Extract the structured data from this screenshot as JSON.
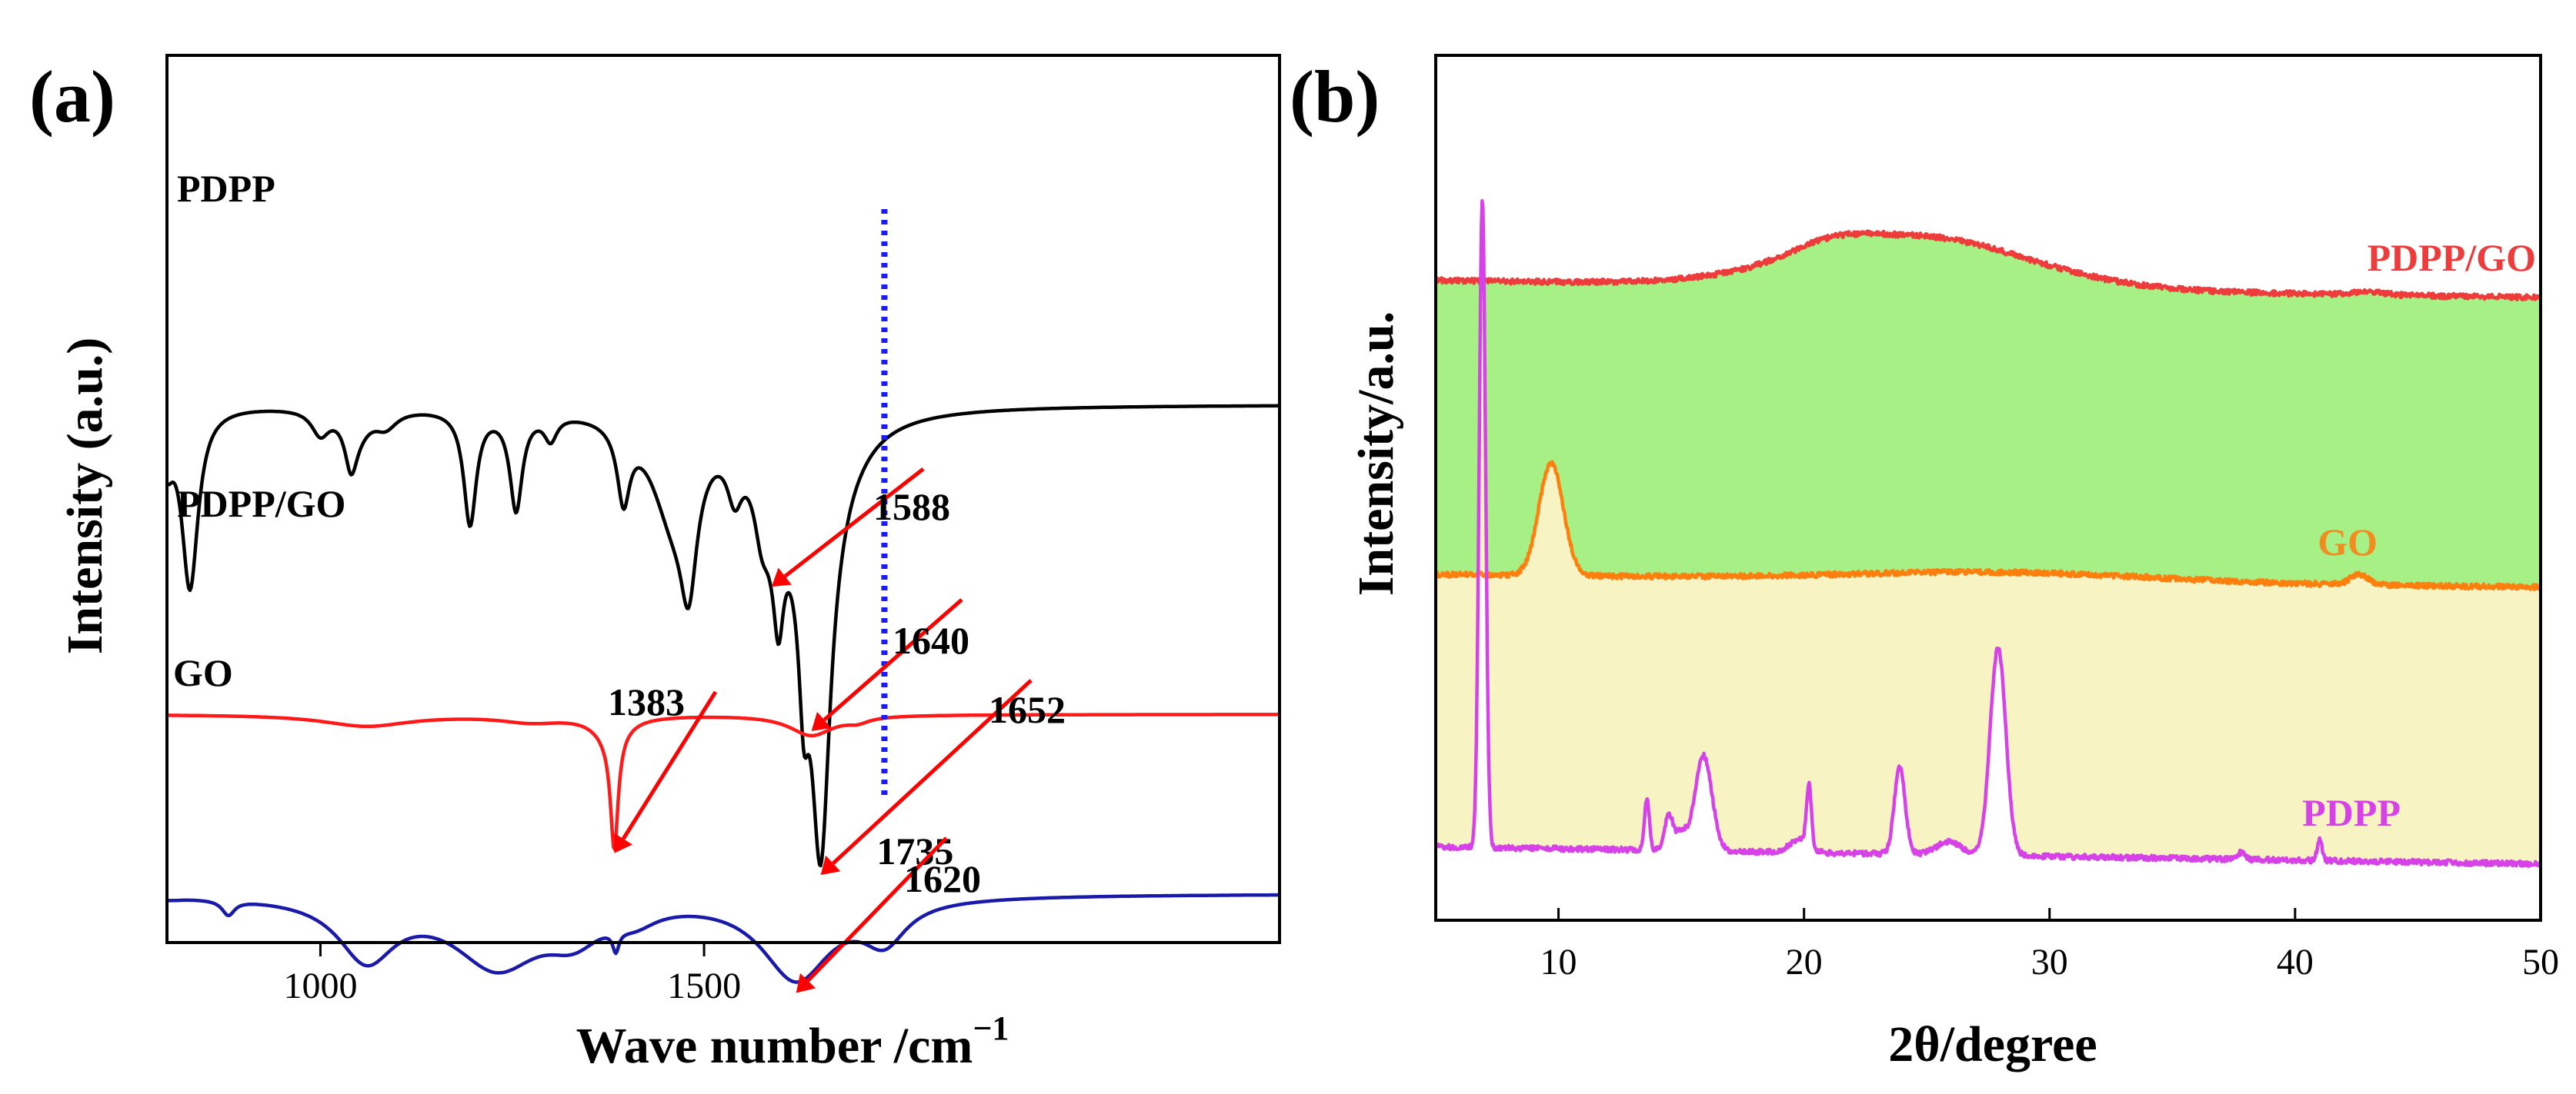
{
  "colors": {
    "ftir_pdpp": "#000000",
    "ftir_pdpp_go": "#ff1a1a",
    "ftir_go": "#1a1aaa",
    "xrd_pdpp_go_line": "#ee3b3b",
    "xrd_pdpp_go_label": "#ee3b3b",
    "xrd_pdpp_go_fill": "#a6f085",
    "xrd_go_line": "#ff7f0e",
    "xrd_go_label": "#f28c1e",
    "xrd_go_fill": "#f7f3c2",
    "xrd_pdpp_line": "#d642e8",
    "xrd_pdpp_label": "#d642e8",
    "annotation_arrow": "#ff0000",
    "reference_line": "#1a1aff"
  },
  "chart_data": [
    {
      "panel": "(a)",
      "type": "line",
      "title": "",
      "xlabel": "Wave number /cm",
      "xlabel_superscript": "−1",
      "ylabel": "Intensity (a.u.)",
      "xlim": [
        800,
        2250
      ],
      "x_ticks": [
        {
          "value": 1000,
          "label": "1000"
        },
        {
          "value": 1500,
          "label": "1500"
        }
      ],
      "series": [
        {
          "name": "PDPP",
          "color_key": "ftir_pdpp",
          "baseline": 0.66,
          "minima": [
            {
              "x": 800,
              "depth": 0.06,
              "width": 10
            },
            {
              "x": 830,
              "depth": 0.22,
              "width": 13
            },
            {
              "x": 1000,
              "depth": 0.03,
              "width": 14
            },
            {
              "x": 1040,
              "depth": 0.06,
              "width": 10
            },
            {
              "x": 1050,
              "depth": 0.02,
              "width": 20
            },
            {
              "x": 1085,
              "depth": 0.02,
              "width": 18
            },
            {
              "x": 1195,
              "depth": 0.14,
              "width": 10
            },
            {
              "x": 1255,
              "depth": 0.12,
              "width": 10
            },
            {
              "x": 1300,
              "depth": 0.03,
              "width": 10
            },
            {
              "x": 1395,
              "depth": 0.09,
              "width": 10
            },
            {
              "x": 1460,
              "depth": 0.12,
              "width": 35
            },
            {
              "x": 1480,
              "depth": 0.14,
              "width": 13
            },
            {
              "x": 1540,
              "depth": 0.06,
              "width": 12
            },
            {
              "x": 1575,
              "depth": 0.06,
              "width": 12
            },
            {
              "x": 1588,
              "depth": 0.06,
              "width": 22
            },
            {
              "x": 1597,
              "depth": 0.12,
              "width": 8
            },
            {
              "x": 1620,
              "depth": 0.05,
              "width": 30
            },
            {
              "x": 1630,
              "depth": 0.16,
              "width": 8
            },
            {
              "x": 1652,
              "depth": 0.43,
              "width": 15
            },
            {
              "x": 1660,
              "depth": 0.08,
              "width": 45
            }
          ]
        },
        {
          "name": "PDPP/GO",
          "color_key": "ftir_pdpp_go",
          "baseline": 0.28,
          "minima": [
            {
              "x": 1060,
              "depth": 0.014,
              "width": 70
            },
            {
              "x": 1275,
              "depth": 0.008,
              "width": 50
            },
            {
              "x": 1383,
              "depth": 0.14,
              "width": 6
            },
            {
              "x": 1378,
              "depth": 0.025,
              "width": 25
            },
            {
              "x": 1640,
              "depth": 0.025,
              "width": 35
            },
            {
              "x": 1700,
              "depth": 0.006,
              "width": 18
            }
          ]
        },
        {
          "name": "GO",
          "color_key": "ftir_go",
          "baseline": 0.06,
          "minima": [
            {
              "x": 800,
              "depth": 0.003,
              "width": 25
            },
            {
              "x": 880,
              "depth": 0.018,
              "width": 10
            },
            {
              "x": 1060,
              "depth": 0.074,
              "width": 45
            },
            {
              "x": 1230,
              "depth": 0.083,
              "width": 70
            },
            {
              "x": 1330,
              "depth": 0.038,
              "width": 45
            },
            {
              "x": 1385,
              "depth": 0.025,
              "width": 5
            },
            {
              "x": 1410,
              "depth": 0.018,
              "width": 35
            },
            {
              "x": 1620,
              "depth": 0.1,
              "width": 55
            },
            {
              "x": 1735,
              "depth": 0.048,
              "width": 35
            }
          ]
        }
      ],
      "annotations": [
        {
          "label": "1383",
          "target_x": 1383,
          "target_series": "PDPP/GO"
        },
        {
          "label": "1588",
          "target_x": 1588,
          "target_series": "PDPP"
        },
        {
          "label": "1640",
          "target_x": 1640,
          "target_series": "PDPP/GO"
        },
        {
          "label": "1652",
          "target_x": 1652,
          "target_series": "PDPP"
        },
        {
          "label": "1620",
          "target_x": 1620,
          "target_series": "GO"
        }
      ],
      "reference_lines": [
        {
          "x": 1735,
          "label": "1735",
          "style": "dotted"
        }
      ]
    },
    {
      "panel": "(b)",
      "type": "line",
      "title": "",
      "xlabel": "2θ/degree",
      "ylabel": "Intensity/a.u.",
      "xlim": [
        5,
        50
      ],
      "x_ticks": [
        {
          "value": 10,
          "label": "10"
        },
        {
          "value": 20,
          "label": "20"
        },
        {
          "value": 30,
          "label": "30"
        },
        {
          "value": 40,
          "label": "40"
        },
        {
          "value": 50,
          "label": "50"
        }
      ],
      "series": [
        {
          "name": "PDPP/GO",
          "color_key": "xrd_pdpp_go_line",
          "label_color_key": "xrd_pdpp_go_label",
          "fill_color_key": "xrd_pdpp_go_fill",
          "baseline": 0.74,
          "baseline_end": 0.72,
          "peaks": [
            {
              "x": 24.5,
              "height": 0.06,
              "width": 4.5
            },
            {
              "x": 21.0,
              "height": 0.012,
              "width": 1.5
            },
            {
              "x": 43.0,
              "height": 0.004,
              "width": 0.6
            }
          ]
        },
        {
          "name": "GO",
          "color_key": "xrd_go_line",
          "label_color_key": "xrd_go_label",
          "fill_color_key": "xrd_go_fill",
          "baseline": 0.4,
          "baseline_end": 0.385,
          "peaks": [
            {
              "x": 9.7,
              "height": 0.13,
              "width": 0.5
            },
            {
              "x": 28.0,
              "height": 0.01,
              "width": 6
            },
            {
              "x": 42.6,
              "height": 0.012,
              "width": 0.35
            }
          ]
        },
        {
          "name": "PDPP",
          "color_key": "xrd_pdpp_line",
          "label_color_key": "xrd_pdpp_label",
          "fill_color_key": null,
          "baseline": 0.085,
          "baseline_end": 0.065,
          "peaks": [
            {
              "x": 6.9,
              "height": 0.75,
              "width": 0.13
            },
            {
              "x": 13.6,
              "height": 0.06,
              "width": 0.1
            },
            {
              "x": 14.5,
              "height": 0.04,
              "width": 0.18
            },
            {
              "x": 15.0,
              "height": 0.02,
              "width": 0.2
            },
            {
              "x": 15.9,
              "height": 0.11,
              "width": 0.35
            },
            {
              "x": 19.8,
              "height": 0.015,
              "width": 0.4
            },
            {
              "x": 20.2,
              "height": 0.07,
              "width": 0.1
            },
            {
              "x": 23.9,
              "height": 0.1,
              "width": 0.22
            },
            {
              "x": 25.9,
              "height": 0.015,
              "width": 0.5
            },
            {
              "x": 27.9,
              "height": 0.24,
              "width": 0.32
            },
            {
              "x": 37.8,
              "height": 0.008,
              "width": 0.15
            },
            {
              "x": 41.0,
              "height": 0.024,
              "width": 0.1
            }
          ]
        }
      ]
    }
  ]
}
